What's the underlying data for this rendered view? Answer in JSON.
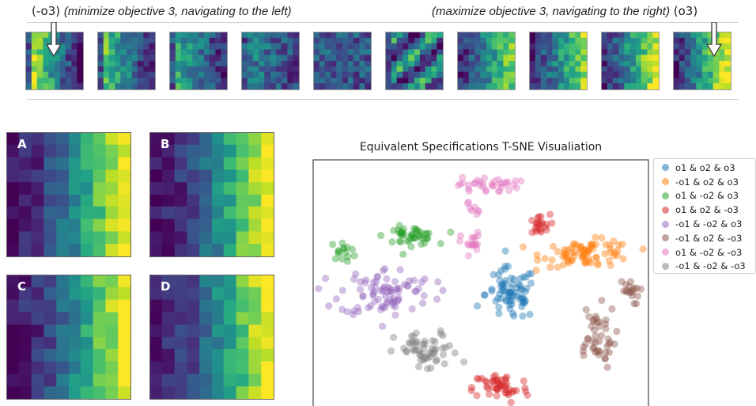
{
  "captions": {
    "left_tag": "(-o3)",
    "left_text": "(minimize objective 3, navigating to the left)",
    "right_text": "(maximize objective 3, navigating to the right)",
    "right_tag": "(o3)"
  },
  "strip": {
    "count": 10,
    "colormap": "viridis"
  },
  "panels": [
    {
      "label": "A"
    },
    {
      "label": "B"
    },
    {
      "label": "C"
    },
    {
      "label": "D"
    }
  ],
  "chart_data": {
    "type": "scatter",
    "title": "Equivalent Specifications T-SNE Visualiation",
    "xlabel": "",
    "ylabel": "",
    "grid": false,
    "axis_ticks": false,
    "legend_position": "outside-right",
    "xlim": [
      0,
      100
    ],
    "ylim": [
      0,
      100
    ],
    "series": [
      {
        "name": "o1 & o2 & o3",
        "color": "#1f77b4",
        "clusters": [
          {
            "cx": 59,
            "cy": 47,
            "sx": 3.8,
            "sy": 5.2,
            "n": 75
          }
        ]
      },
      {
        "name": "-o1 & o2 & o3",
        "color": "#ff7f0e",
        "clusters": [
          {
            "cx": 82,
            "cy": 63,
            "sx": 6.8,
            "sy": 2.6,
            "n": 80
          }
        ]
      },
      {
        "name": "o1 & -o2 & o3",
        "color": "#2ca02c",
        "clusters": [
          {
            "cx": 29,
            "cy": 70,
            "sx": 3.8,
            "sy": 1.8,
            "n": 45
          },
          {
            "cx": 9,
            "cy": 64,
            "sx": 2.0,
            "sy": 1.8,
            "n": 15
          }
        ]
      },
      {
        "name": "o1 & o2 & -o3",
        "color": "#d62728",
        "clusters": [
          {
            "cx": 67,
            "cy": 74,
            "sx": 1.8,
            "sy": 2.2,
            "n": 22
          },
          {
            "cx": 56,
            "cy": 10,
            "sx": 4.2,
            "sy": 3.2,
            "n": 50
          }
        ]
      },
      {
        "name": "-o1 & -o2 & o3",
        "color": "#9467bd",
        "clusters": [
          {
            "cx": 22,
            "cy": 48,
            "sx": 7.0,
            "sy": 4.8,
            "n": 85
          }
        ]
      },
      {
        "name": "-o1 & o2 & -o3",
        "color": "#8c564b",
        "clusters": [
          {
            "cx": 84,
            "cy": 30,
            "sx": 3.2,
            "sy": 6.2,
            "n": 45
          },
          {
            "cx": 94,
            "cy": 48,
            "sx": 1.6,
            "sy": 2.6,
            "n": 18
          }
        ]
      },
      {
        "name": "o1 & -o2 & -o3",
        "color": "#e377c2",
        "clusters": [
          {
            "cx": 52,
            "cy": 90,
            "sx": 4.5,
            "sy": 1.6,
            "n": 35
          },
          {
            "cx": 48,
            "cy": 82,
            "sx": 1.0,
            "sy": 2.2,
            "n": 8
          },
          {
            "cx": 47,
            "cy": 67,
            "sx": 1.5,
            "sy": 2.2,
            "n": 18
          }
        ]
      },
      {
        "name": "-o1 & -o2 & -o3",
        "color": "#7f7f7f",
        "clusters": [
          {
            "cx": 34,
            "cy": 24,
            "sx": 4.8,
            "sy": 4.0,
            "n": 55
          }
        ]
      }
    ]
  }
}
